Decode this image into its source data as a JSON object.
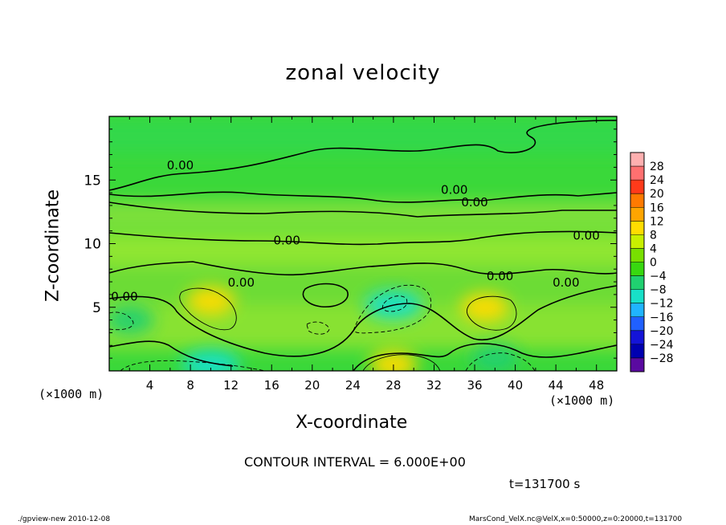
{
  "chart_data": {
    "type": "heatmap",
    "title": "zonal velocity",
    "xlabel": "X-coordinate",
    "ylabel": "Z-coordinate",
    "x_unit": "(×1000 m)",
    "xlim": [
      0,
      50
    ],
    "ylim": [
      0,
      20
    ],
    "x_ticks": [
      4,
      8,
      12,
      16,
      20,
      24,
      28,
      32,
      36,
      40,
      44,
      48
    ],
    "y_ticks": [
      5,
      10,
      15
    ],
    "colorbar": {
      "levels": [
        28,
        24,
        20,
        16,
        12,
        8,
        4,
        0,
        -4,
        -8,
        -12,
        -16,
        -20,
        -24,
        -28
      ],
      "colors": [
        "#ffb0b0",
        "#ff7070",
        "#ff3a1a",
        "#ff7a00",
        "#ffa500",
        "#ffdc00",
        "#c8f000",
        "#78e000",
        "#38d810",
        "#20d070",
        "#18e0c8",
        "#20b4ff",
        "#2060ff",
        "#1414d8",
        "#0000b0",
        "#5a0aa0"
      ],
      "label_texts": [
        "28",
        "24",
        "20",
        "16",
        "12",
        "8",
        "4",
        "0",
        "−4",
        "−8",
        "−12",
        "−16",
        "−20",
        "−24",
        "−28"
      ]
    },
    "contour_labels": [
      {
        "text": "0.00",
        "x": 7,
        "z": 16.2
      },
      {
        "text": "0.00",
        "x": 34,
        "z": 14.3
      },
      {
        "text": "0.00",
        "x": 36,
        "z": 13.3
      },
      {
        "text": "0.00",
        "x": 17.5,
        "z": 10.3
      },
      {
        "text": "0.00",
        "x": 47,
        "z": 10.7
      },
      {
        "text": "0.00",
        "x": 13,
        "z": 7.0
      },
      {
        "text": "0.00",
        "x": 38.5,
        "z": 7.5
      },
      {
        "text": "0.00",
        "x": 45,
        "z": 7.0
      },
      {
        "text": "0.00",
        "x": 1.5,
        "z": 5.9
      }
    ],
    "features": [
      {
        "kind": "positive",
        "x": 10,
        "z": 5.5,
        "value": 8
      },
      {
        "kind": "positive",
        "x": 37,
        "z": 5.0,
        "value": 8
      },
      {
        "kind": "positive",
        "x": 28,
        "z": 0.5,
        "value": 8
      },
      {
        "kind": "negative",
        "x": 28,
        "z": 5.2,
        "value": -10
      },
      {
        "kind": "negative",
        "x": 2,
        "z": 4.0,
        "value": -6
      },
      {
        "kind": "negative",
        "x": 10,
        "z": 0.5,
        "value": -12
      },
      {
        "kind": "negative",
        "x": 38,
        "z": 1.0,
        "value": -8
      }
    ]
  },
  "labels": {
    "xunit_left": "(×1000 m)",
    "xunit_right": "(×1000 m)",
    "interval": "CONTOUR INTERVAL = 6.000E+00",
    "time": "t=131700 s",
    "footer_left": "./gpview-new  2010-12-08",
    "footer_right": "MarsCond_VelX.nc@VelX,x=0:50000,z=0:20000,t=131700"
  }
}
